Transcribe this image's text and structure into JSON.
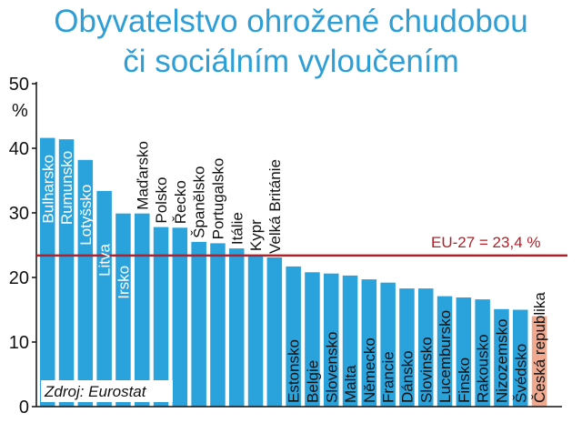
{
  "chart_data": {
    "type": "bar",
    "title_lines": [
      "Obyvatelstvo ohrožené chudobou",
      "či sociálním vyloučením"
    ],
    "ylabel": "%",
    "ylim": [
      0,
      50
    ],
    "yticks": [
      0,
      10,
      20,
      30,
      40,
      50
    ],
    "categories": [
      "Bulharsko",
      "Rumunsko",
      "Lotyšsko",
      "Litva",
      "Irsko",
      "Maďarsko",
      "Polsko",
      "Řecko",
      "Španělsko",
      "Portugalsko",
      "Itálie",
      "Kypr",
      "Velká Británie",
      "Estonsko",
      "Belgie",
      "Slovensko",
      "Malta",
      "Německo",
      "Francie",
      "Dánsko",
      "Slovinsko",
      "Lucembursko",
      "Finsko",
      "Rakousko",
      "Nizozemsko",
      "Švédsko",
      "Česká republika"
    ],
    "values": [
      41.6,
      41.4,
      38.2,
      33.4,
      29.9,
      29.9,
      27.8,
      27.7,
      25.5,
      25.3,
      24.5,
      23.5,
      23.1,
      21.7,
      20.8,
      20.6,
      20.3,
      19.7,
      19.2,
      18.3,
      18.3,
      17.1,
      16.9,
      16.6,
      15.1,
      15.0,
      14.0
    ],
    "bar_color": "#2aa3dc",
    "highlight_index": 26,
    "highlight_color": "#f0a98f",
    "reference_line": {
      "value": 23.4,
      "label": "EU-27 = 23,4 %",
      "color": "#b3202a"
    },
    "legend": "none",
    "grid": false,
    "source_label": "Zdroj: Eurostat"
  }
}
